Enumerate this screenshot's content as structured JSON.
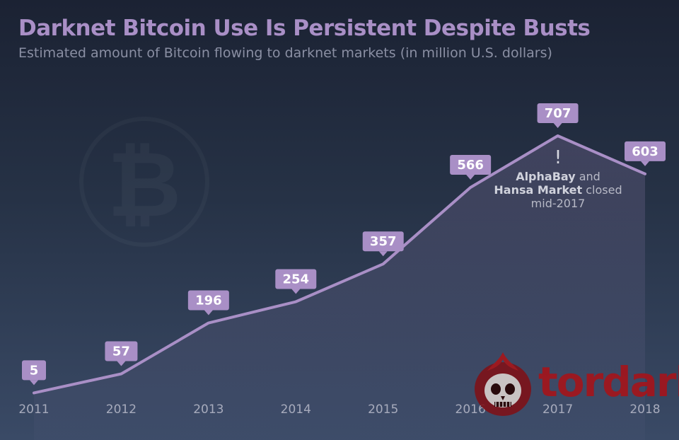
{
  "header": {
    "title": "Darknet Bitcoin Use Is Persistent Despite Busts",
    "subtitle": "Estimated amount of Bitcoin flowing to darknet markets (in million U.S. dollars)"
  },
  "annotation": {
    "mark": "!",
    "line1_bold": "AlphaBay",
    "line1_rest": " and",
    "line2_bold": "Hansa Market",
    "line2_rest": " closed",
    "line3": "mid-2017"
  },
  "brand": {
    "wordmark": "tordark"
  },
  "colors": {
    "line": "#a98fc6",
    "label_bg": "#a98fc6",
    "label_text": "#ffffff",
    "axis_text": "#a7abbc",
    "title": "#a98fc6",
    "brand": "#a3151c"
  },
  "chart_data": {
    "type": "area",
    "categories": [
      "2011",
      "2012",
      "2013",
      "2014",
      "2015",
      "2016",
      "2017",
      "2018"
    ],
    "series": [
      {
        "values": [
          5,
          57,
          196,
          254,
          357,
          566,
          707,
          603
        ]
      }
    ],
    "title": "Darknet Bitcoin Use Is Persistent Despite Busts",
    "subtitle": "Estimated amount of Bitcoin flowing to darknet markets (in million U.S. dollars)",
    "xlabel": "",
    "ylabel": "",
    "ylim": [
      0,
      707
    ],
    "grid": false,
    "legend": "none",
    "data_labels": true
  }
}
